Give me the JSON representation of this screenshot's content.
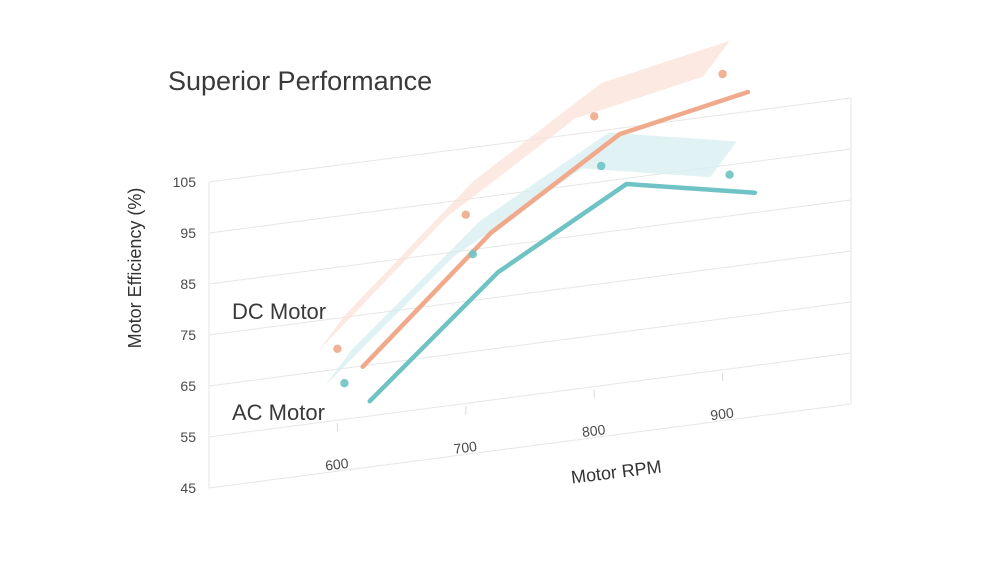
{
  "chart_data": {
    "type": "line",
    "title": "Superior Performance",
    "xlabel": "Motor RPM",
    "ylabel": "Motor Efficiency (%)",
    "categories": [
      "600",
      "700",
      "800",
      "900"
    ],
    "y_ticks": [
      "45",
      "55",
      "65",
      "75",
      "85",
      "95",
      "105"
    ],
    "ylim": [
      45,
      105
    ],
    "grid": true,
    "series": [
      {
        "name": "DC Motor",
        "values": [
          69,
          92,
          108,
          113
        ],
        "color": "#f0a98a",
        "band_color": "#fbe3d8"
      },
      {
        "name": "AC Motor",
        "values": [
          65,
          87,
          101,
          96
        ],
        "color": "#6fc3c4",
        "band_color": "#d7eef0"
      }
    ]
  }
}
